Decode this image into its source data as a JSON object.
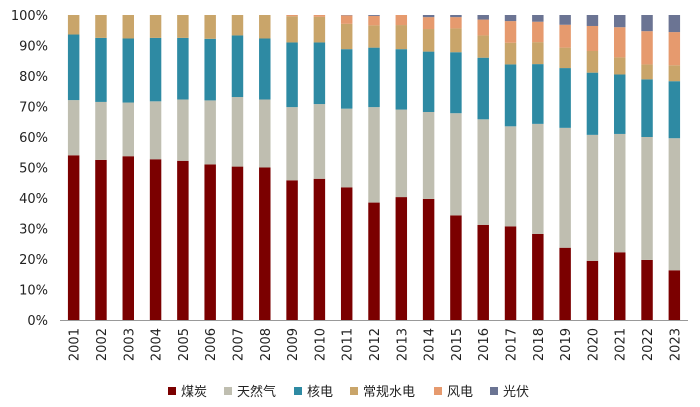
{
  "chart_data": {
    "type": "bar",
    "stacked": true,
    "title": "",
    "xlabel": "",
    "ylabel": "",
    "ylim": [
      0,
      100
    ],
    "y_ticks": [
      "0%",
      "10%",
      "20%",
      "30%",
      "40%",
      "50%",
      "60%",
      "70%",
      "80%",
      "90%",
      "100%"
    ],
    "grid": false,
    "legend_position": "bottom",
    "categories": [
      "2001",
      "2002",
      "2003",
      "2004",
      "2005",
      "2006",
      "2007",
      "2008",
      "2009",
      "2010",
      "2011",
      "2012",
      "2013",
      "2014",
      "2015",
      "2016",
      "2017",
      "2018",
      "2019",
      "2020",
      "2021",
      "2022",
      "2023"
    ],
    "series": [
      {
        "name": "煤炭",
        "color": "#7b0000",
        "values": [
          54,
          52.5,
          53.7,
          52.7,
          52.2,
          51,
          50.3,
          50,
          45.8,
          46.3,
          43.5,
          38.5,
          40.3,
          39.7,
          34.3,
          31.2,
          30.7,
          28.2,
          23.7,
          19.4,
          22.2,
          19.7,
          16.3
        ]
      },
      {
        "name": "天然气",
        "color": "#bfbeb0",
        "values": [
          18.1,
          19,
          17.6,
          19,
          20.1,
          21,
          22.8,
          22.3,
          24,
          24.5,
          25.8,
          31.3,
          28.7,
          28.5,
          33.5,
          34.6,
          32.8,
          36.1,
          39.3,
          41.3,
          38.8,
          40.3,
          43.3
        ]
      },
      {
        "name": "核电",
        "color": "#2e8aa3",
        "values": [
          21.5,
          21,
          21,
          20.8,
          20.2,
          20.2,
          20.2,
          20,
          21.2,
          20.2,
          19.5,
          19.5,
          19.8,
          19.8,
          20,
          20.2,
          20.3,
          19.6,
          19.6,
          20.4,
          19.5,
          18.9,
          18.7
        ]
      },
      {
        "name": "常规水电",
        "color": "#c9a56a",
        "values": [
          6.4,
          7.5,
          7.7,
          7.5,
          7.5,
          7.8,
          6.7,
          7.7,
          8.6,
          8.4,
          8.3,
          7.3,
          7.9,
          7.4,
          7.8,
          7.3,
          7.1,
          7.2,
          6.7,
          7.1,
          5.6,
          4.9,
          5.2
        ]
      },
      {
        "name": "风电",
        "color": "#e69a6e",
        "values": [
          0,
          0,
          0,
          0,
          0,
          0,
          0,
          0,
          0.4,
          0.6,
          2.8,
          3.1,
          3.3,
          3.9,
          3.7,
          5.2,
          7.1,
          6.7,
          7.5,
          8.2,
          9.9,
          10.9,
          10.9
        ]
      },
      {
        "name": "光伏",
        "color": "#6b7493",
        "values": [
          0,
          0,
          0,
          0,
          0,
          0,
          0,
          0,
          0,
          0,
          0.1,
          0.3,
          0,
          0.7,
          0.7,
          1.5,
          2,
          2.2,
          3.2,
          3.6,
          4,
          5.3,
          5.6
        ]
      }
    ]
  }
}
